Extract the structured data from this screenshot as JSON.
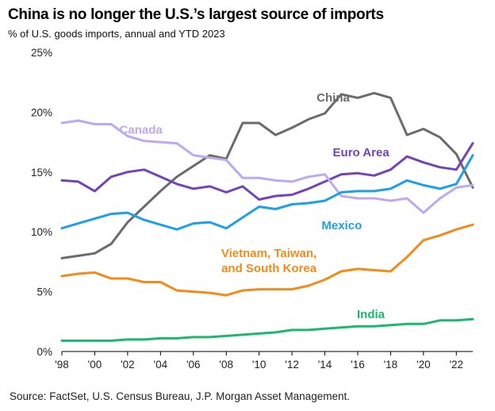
{
  "header": {
    "title": "China is no longer the U.S.’s largest source of imports",
    "subtitle": "% of U.S. goods imports, annual and YTD 2023"
  },
  "footer": {
    "source": "Source: FactSet, U.S. Census Bureau, J.P. Morgan Asset Management."
  },
  "chart_data": {
    "type": "line",
    "x": [
      1998,
      1999,
      2000,
      2001,
      2002,
      2003,
      2004,
      2005,
      2006,
      2007,
      2008,
      2009,
      2010,
      2011,
      2012,
      2013,
      2014,
      2015,
      2016,
      2017,
      2018,
      2019,
      2020,
      2021,
      2022,
      2023
    ],
    "xticks": [
      1998,
      2000,
      2002,
      2004,
      2006,
      2008,
      2010,
      2012,
      2014,
      2016,
      2018,
      2020,
      2022
    ],
    "xtick_labels": [
      "'98",
      "'00",
      "'02",
      "'04",
      "'06",
      "'08",
      "'10",
      "'12",
      "'14",
      "'16",
      "'18",
      "'20",
      "'22"
    ],
    "yticks": [
      0,
      5,
      10,
      15,
      20,
      25
    ],
    "ytick_labels": [
      "0%",
      "5%",
      "10%",
      "15%",
      "20%",
      "25%"
    ],
    "ylim": [
      0,
      25
    ],
    "grid": false,
    "series": [
      {
        "name": "China",
        "label_lines": [
          "China"
        ],
        "color": "#6b6b6b",
        "values": [
          7.8,
          8.0,
          8.2,
          9.0,
          10.8,
          12.1,
          13.4,
          14.6,
          15.5,
          16.4,
          16.1,
          19.1,
          19.1,
          18.1,
          18.7,
          19.4,
          19.9,
          21.5,
          21.2,
          21.6,
          21.2,
          18.1,
          18.6,
          17.9,
          16.5,
          13.7
        ]
      },
      {
        "name": "Euro Area",
        "label_lines": [
          "Euro Area"
        ],
        "color": "#7443b9",
        "values": [
          14.3,
          14.2,
          13.4,
          14.6,
          15.0,
          15.2,
          14.6,
          14.0,
          13.6,
          13.8,
          13.3,
          13.8,
          12.7,
          13.0,
          13.1,
          13.6,
          14.2,
          14.8,
          14.9,
          14.7,
          15.2,
          16.3,
          15.8,
          15.4,
          15.2,
          17.4
        ]
      },
      {
        "name": "Canada",
        "label_lines": [
          "Canada"
        ],
        "color": "#c0a8f0",
        "values": [
          19.1,
          19.3,
          19.0,
          19.0,
          18.0,
          17.6,
          17.5,
          17.4,
          16.4,
          16.2,
          16.0,
          14.5,
          14.5,
          14.3,
          14.2,
          14.6,
          14.8,
          13.0,
          12.8,
          12.8,
          12.6,
          12.8,
          11.6,
          12.8,
          13.7,
          13.9
        ]
      },
      {
        "name": "Mexico",
        "label_lines": [
          "Mexico"
        ],
        "color": "#1ea0e8",
        "values": [
          10.3,
          10.7,
          11.1,
          11.5,
          11.6,
          11.0,
          10.6,
          10.2,
          10.7,
          10.8,
          10.3,
          11.2,
          12.1,
          11.9,
          12.3,
          12.4,
          12.6,
          13.3,
          13.4,
          13.4,
          13.6,
          14.3,
          13.9,
          13.6,
          14.0,
          16.4
        ]
      },
      {
        "name": "Vietnam, Taiwan, and South Korea",
        "label_lines": [
          "Vietnam, Taiwan,",
          "and South Korea"
        ],
        "color": "#f28b1a",
        "values": [
          6.3,
          6.5,
          6.6,
          6.1,
          6.1,
          5.8,
          5.8,
          5.1,
          5.0,
          4.9,
          4.7,
          5.1,
          5.2,
          5.2,
          5.2,
          5.5,
          6.0,
          6.7,
          6.9,
          6.8,
          6.7,
          7.9,
          9.3,
          9.7,
          10.2,
          10.6
        ]
      },
      {
        "name": "India",
        "label_lines": [
          "India"
        ],
        "color": "#1cb86e",
        "values": [
          0.9,
          0.9,
          0.9,
          0.9,
          1.0,
          1.0,
          1.1,
          1.1,
          1.2,
          1.2,
          1.3,
          1.4,
          1.5,
          1.6,
          1.8,
          1.8,
          1.9,
          2.0,
          2.1,
          2.1,
          2.2,
          2.3,
          2.3,
          2.6,
          2.6,
          2.7
        ]
      }
    ]
  }
}
